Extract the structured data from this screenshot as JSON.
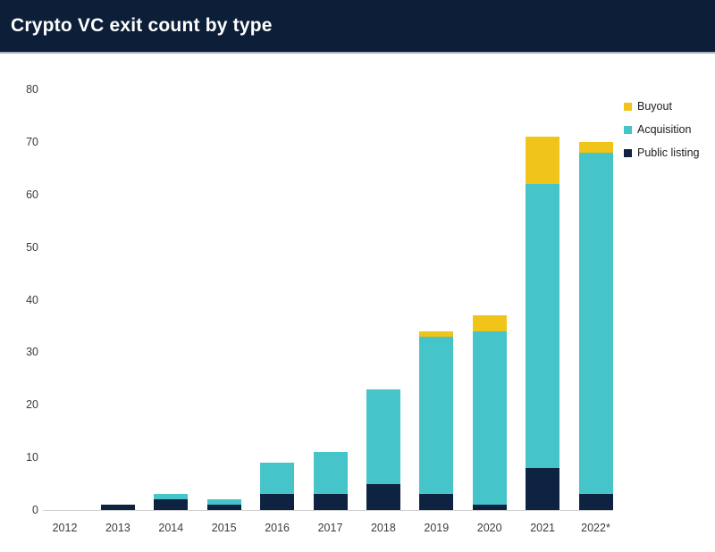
{
  "header": {
    "title": "Crypto VC exit count by type"
  },
  "chart_data": {
    "type": "bar",
    "stacked": true,
    "title": "Crypto VC exit count by type",
    "categories": [
      "2012",
      "2013",
      "2014",
      "2015",
      "2016",
      "2017",
      "2018",
      "2019",
      "2020",
      "2021",
      "2022*"
    ],
    "series": [
      {
        "name": "Buyout",
        "color": "#f0c419",
        "values": [
          0,
          0,
          0,
          0,
          0,
          0,
          0,
          1,
          3,
          9,
          2
        ]
      },
      {
        "name": "Acquisition",
        "color": "#45c4c9",
        "values": [
          0,
          0,
          1,
          1,
          6,
          8,
          18,
          30,
          33,
          54,
          65
        ]
      },
      {
        "name": "Public listing",
        "color": "#0e2341",
        "values": [
          0,
          1,
          2,
          1,
          3,
          3,
          5,
          3,
          1,
          8,
          3
        ]
      }
    ],
    "stack_bottom_to_top": [
      "Public listing",
      "Acquisition",
      "Buyout"
    ],
    "totals": [
      0,
      1,
      3,
      2,
      9,
      11,
      23,
      34,
      37,
      71,
      70
    ],
    "xlabel": "",
    "ylabel": "",
    "ylim": [
      0,
      80
    ],
    "yticks": [
      0,
      10,
      20,
      30,
      40,
      50,
      60,
      70,
      80
    ],
    "grid": false,
    "legend_position": "top-right"
  },
  "colors": {
    "header_bg": "#0d1e38",
    "header_border": "#a9b0ba",
    "axis_line": "#d0d0d0",
    "tick_text": "#3c3c3c",
    "legend_text": "#1c1c1c",
    "background": "#ffffff"
  }
}
